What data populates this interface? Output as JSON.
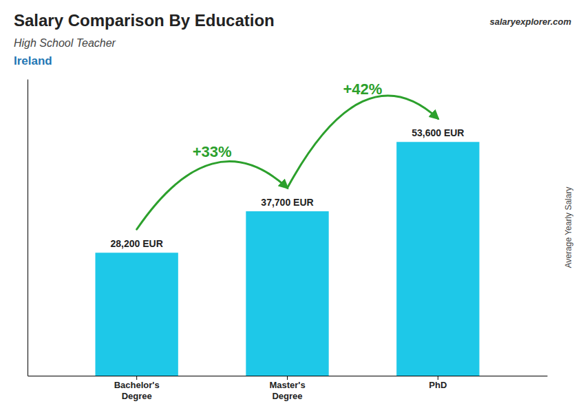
{
  "chart_data": {
    "type": "bar",
    "title": "Salary Comparison By Education",
    "subtitle": "High School Teacher",
    "categories": [
      "Bachelor's\nDegree",
      "Master's\nDegree",
      "PhD"
    ],
    "values": [
      28200,
      37700,
      53600
    ],
    "value_labels": [
      "28,200 EUR",
      "37,700 EUR",
      "53,600 EUR"
    ],
    "data_labels": true,
    "color": "#1EC8E8",
    "ylabel": "Average Yearly Salary",
    "ylim": [
      0,
      68000
    ],
    "yticks": [],
    "tick_labels": "x",
    "annotations": [
      {
        "text": "Ireland"
      },
      {
        "text": "salaryexplorer.com"
      },
      {
        "text": "+33%",
        "from": "Bachelor's\nDegree",
        "to": "Master's\nDegree"
      },
      {
        "text": "+42%",
        "from": "Master's\nDegree",
        "to": "PhD"
      }
    ]
  }
}
